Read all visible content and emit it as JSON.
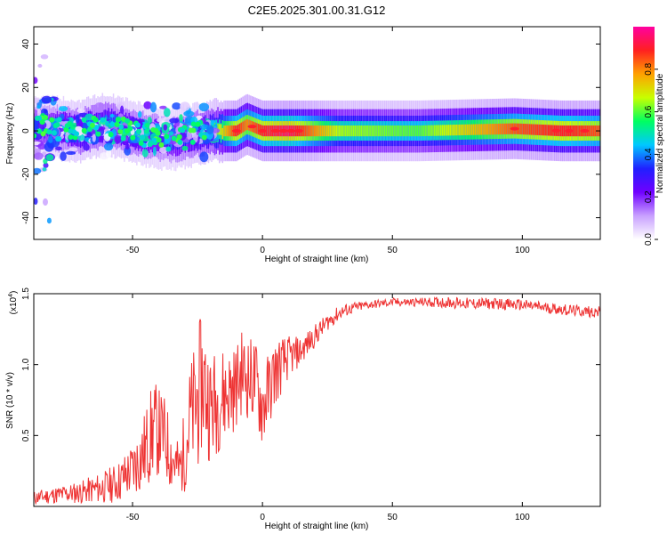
{
  "chart_data": [
    {
      "type": "heatmap",
      "title": "C2E5.2025.301.00.31.G12",
      "xlabel": "Height of straight line (km)",
      "ylabel": "Frequency (Hz)",
      "xlim": [
        -88,
        130
      ],
      "ylim": [
        -50,
        48
      ],
      "xticks": [
        -50,
        0,
        50,
        100
      ],
      "xtick_labels": [
        "-50",
        "0",
        "50",
        "100"
      ],
      "yticks": [
        -40,
        -20,
        0,
        20,
        40
      ],
      "ytick_labels": [
        "-40",
        "-20",
        "0",
        "20",
        "40"
      ],
      "colorbar": {
        "label": "Normalized spectral amplitude",
        "range": [
          0.0,
          1.0
        ],
        "ticks": [
          0.0,
          0.2,
          0.4,
          0.6,
          0.8
        ],
        "tick_labels": [
          "0.0",
          "0.2",
          "0.4",
          "0.6",
          "0.8"
        ],
        "colors": [
          "#ffffff",
          "#c8a0ff",
          "#7000ff",
          "#2020ff",
          "#00c8ff",
          "#00ff60",
          "#c8ff00",
          "#ffa000",
          "#ff2020",
          "#ff00a0"
        ]
      },
      "description_points": [
        {
          "x": -85,
          "f": 2,
          "a": 0.35
        },
        {
          "x": -70,
          "f": 0,
          "a": 0.5
        },
        {
          "x": -60,
          "f": 3,
          "a": 0.5
        },
        {
          "x": -45,
          "f": -2,
          "a": 0.45
        },
        {
          "x": -35,
          "f": -4,
          "a": 0.4
        },
        {
          "x": -20,
          "f": 0,
          "a": 0.55
        },
        {
          "x": -10,
          "f": 0,
          "a": 0.9
        },
        {
          "x": -6,
          "f": 3,
          "a": 0.8
        },
        {
          "x": 0,
          "f": 0,
          "a": 0.9
        },
        {
          "x": 10,
          "f": 0,
          "a": 0.95
        },
        {
          "x": 30,
          "f": 0,
          "a": 0.65
        },
        {
          "x": 60,
          "f": 0,
          "a": 0.6
        },
        {
          "x": 97,
          "f": 1,
          "a": 0.85
        },
        {
          "x": 115,
          "f": 0,
          "a": 0.9
        },
        {
          "x": 130,
          "f": 0,
          "a": 0.85
        }
      ]
    },
    {
      "type": "line",
      "title": "",
      "xlabel": "Height of straight line (km)",
      "ylabel": "SNR (10 * v/v)",
      "scale_label": "(x10",
      "scale_exp": "4",
      "scale_close": ")",
      "xlim": [
        -88,
        130
      ],
      "ylim": [
        0,
        1.5
      ],
      "xticks": [
        -50,
        0,
        50,
        100
      ],
      "xtick_labels": [
        "-50",
        "0",
        "50",
        "100"
      ],
      "yticks": [
        0.5,
        1.0,
        1.5
      ],
      "ytick_labels": [
        "0.5",
        "1.0",
        "1.5"
      ],
      "series": [
        {
          "name": "SNR",
          "color": "#ee3333",
          "x": [
            -88,
            -80,
            -70,
            -60,
            -55,
            -50,
            -45,
            -42,
            -38,
            -35,
            -32,
            -30,
            -28,
            -25,
            -23,
            -20,
            -15,
            -10,
            -8,
            -5,
            -3,
            0,
            5,
            10,
            15,
            20,
            25,
            30,
            35,
            40,
            45,
            50,
            60,
            70,
            80,
            90,
            100,
            110,
            120,
            130
          ],
          "values": [
            0.06,
            0.08,
            0.1,
            0.14,
            0.18,
            0.26,
            0.4,
            0.55,
            0.5,
            0.35,
            0.25,
            0.4,
            0.6,
            0.75,
            0.9,
            0.7,
            0.78,
            0.85,
            0.95,
            0.9,
            0.9,
            0.7,
            0.95,
            1.05,
            1.1,
            1.2,
            1.3,
            1.37,
            1.4,
            1.42,
            1.43,
            1.44,
            1.44,
            1.44,
            1.43,
            1.43,
            1.42,
            1.4,
            1.38,
            1.37
          ],
          "noise": [
            0.05,
            0.06,
            0.08,
            0.12,
            0.15,
            0.2,
            0.3,
            0.35,
            0.3,
            0.25,
            0.2,
            0.3,
            0.4,
            0.5,
            0.5,
            0.4,
            0.35,
            0.3,
            0.3,
            0.3,
            0.3,
            0.3,
            0.25,
            0.15,
            0.1,
            0.08,
            0.06,
            0.05,
            0.04,
            0.03,
            0.03,
            0.03,
            0.03,
            0.04,
            0.04,
            0.04,
            0.04,
            0.04,
            0.04,
            0.04
          ]
        }
      ]
    }
  ]
}
